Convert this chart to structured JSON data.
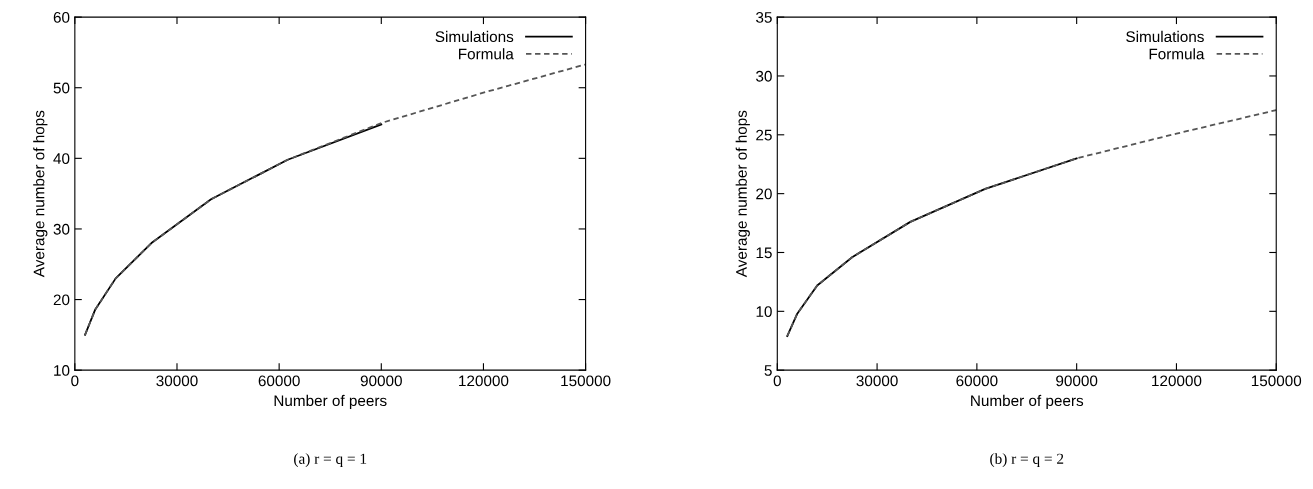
{
  "chart_data": [
    {
      "type": "line",
      "xlabel": "Number of peers",
      "ylabel": "Average number of hops",
      "annotations": [
        "(a) r = q = 1"
      ],
      "xlim": [
        0,
        150000
      ],
      "ylim": [
        10,
        60
      ],
      "xticks": [
        0,
        30000,
        60000,
        90000,
        120000,
        150000
      ],
      "yticks": [
        10,
        20,
        30,
        40,
        50,
        60
      ],
      "grid": false,
      "legend": "top right",
      "marker": "none",
      "series": [
        {
          "name": "Simulations",
          "color": "#000000",
          "line_style": "solid",
          "x": [
            3000,
            6000,
            12000,
            22500,
            40000,
            62500,
            90000
          ],
          "values": [
            15,
            18.6,
            23,
            28,
            34.2,
            39.8,
            44.8
          ]
        },
        {
          "name": "Formula",
          "color": "#555555",
          "line_style": "dashed",
          "x": [
            3000,
            6000,
            12000,
            22500,
            40000,
            62500,
            90000,
            120000,
            150000
          ],
          "values": [
            15,
            18.6,
            23,
            28,
            34.2,
            39.8,
            45,
            49.3,
            53.3
          ]
        }
      ]
    },
    {
      "type": "line",
      "xlabel": "Number of peers",
      "ylabel": "Average number of hops",
      "annotations": [
        "(b) r = q = 2"
      ],
      "xlim": [
        0,
        150000
      ],
      "ylim": [
        5,
        35
      ],
      "xticks": [
        0,
        30000,
        60000,
        90000,
        120000,
        150000
      ],
      "yticks": [
        5,
        10,
        15,
        20,
        25,
        30,
        35
      ],
      "grid": false,
      "legend": "top right",
      "marker": "none",
      "series": [
        {
          "name": "Simulations",
          "color": "#000000",
          "line_style": "solid",
          "x": [
            3000,
            6000,
            12000,
            22500,
            40000,
            62500,
            90000
          ],
          "values": [
            7.9,
            9.8,
            12.2,
            14.6,
            17.6,
            20.4,
            23
          ]
        },
        {
          "name": "Formula",
          "color": "#555555",
          "line_style": "dashed",
          "x": [
            3000,
            6000,
            12000,
            22500,
            40000,
            62500,
            90000,
            120000,
            150000
          ],
          "values": [
            7.9,
            9.8,
            12.2,
            14.6,
            17.6,
            20.4,
            23,
            25.1,
            27.1
          ]
        }
      ]
    }
  ]
}
